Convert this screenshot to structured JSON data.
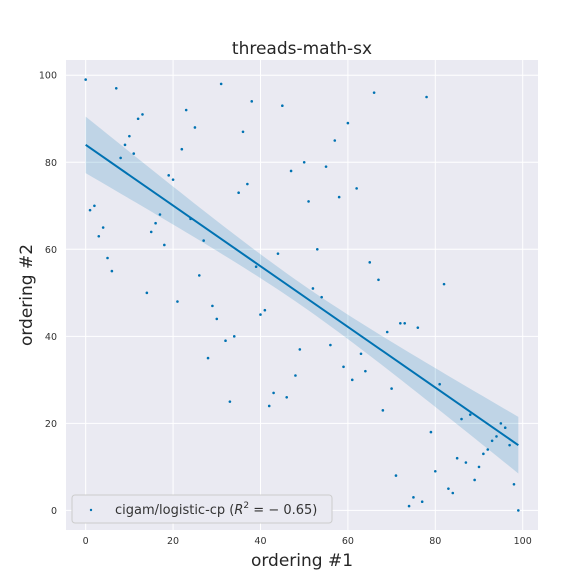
{
  "chart_data": {
    "type": "scatter",
    "title": "threads-math-sx",
    "xlabel": "ordering #1",
    "ylabel": "ordering #2",
    "xlim": [
      -4.5,
      103.5
    ],
    "ylim": [
      -4.5,
      103.5
    ],
    "xticks": [
      0,
      20,
      40,
      60,
      80,
      100
    ],
    "yticks": [
      0,
      20,
      40,
      60,
      80,
      100
    ],
    "grid": true,
    "legend_position": "lower-left",
    "legend": {
      "prefix": "cigam/logistic-cp (",
      "r2_label": "R",
      "r2_exponent": "2",
      "r2_value": " = − 0.65)"
    },
    "series": [
      {
        "name": "cigam/logistic-cp",
        "points": [
          [
            0,
            99
          ],
          [
            1,
            69
          ],
          [
            2,
            70
          ],
          [
            3,
            63
          ],
          [
            4,
            65
          ],
          [
            5,
            58
          ],
          [
            6,
            55
          ],
          [
            7,
            97
          ],
          [
            8,
            81
          ],
          [
            9,
            84
          ],
          [
            10,
            86
          ],
          [
            11,
            82
          ],
          [
            12,
            90
          ],
          [
            13,
            91
          ],
          [
            14,
            50
          ],
          [
            15,
            64
          ],
          [
            16,
            66
          ],
          [
            17,
            68
          ],
          [
            18,
            61
          ],
          [
            19,
            77
          ],
          [
            20,
            76
          ],
          [
            21,
            48
          ],
          [
            22,
            83
          ],
          [
            23,
            92
          ],
          [
            24,
            67
          ],
          [
            25,
            88
          ],
          [
            26,
            54
          ],
          [
            27,
            62
          ],
          [
            28,
            35
          ],
          [
            29,
            47
          ],
          [
            30,
            44
          ],
          [
            31,
            98
          ],
          [
            32,
            39
          ],
          [
            33,
            25
          ],
          [
            34,
            40
          ],
          [
            35,
            73
          ],
          [
            36,
            87
          ],
          [
            37,
            75
          ],
          [
            38,
            94
          ],
          [
            39,
            56
          ],
          [
            40,
            45
          ],
          [
            41,
            46
          ],
          [
            42,
            24
          ],
          [
            43,
            27
          ],
          [
            44,
            59
          ],
          [
            45,
            93
          ],
          [
            46,
            26
          ],
          [
            47,
            78
          ],
          [
            48,
            31
          ],
          [
            49,
            37
          ],
          [
            50,
            80
          ],
          [
            51,
            71
          ],
          [
            52,
            51
          ],
          [
            53,
            60
          ],
          [
            54,
            49
          ],
          [
            55,
            79
          ],
          [
            56,
            38
          ],
          [
            57,
            85
          ],
          [
            58,
            72
          ],
          [
            59,
            33
          ],
          [
            60,
            89
          ],
          [
            61,
            30
          ],
          [
            62,
            74
          ],
          [
            63,
            36
          ],
          [
            64,
            32
          ],
          [
            65,
            57
          ],
          [
            66,
            96
          ],
          [
            67,
            53
          ],
          [
            68,
            23
          ],
          [
            69,
            41
          ],
          [
            70,
            28
          ],
          [
            71,
            8
          ],
          [
            72,
            43
          ],
          [
            73,
            43
          ],
          [
            74,
            1
          ],
          [
            75,
            3
          ],
          [
            76,
            42
          ],
          [
            77,
            2
          ],
          [
            78,
            95
          ],
          [
            79,
            18
          ],
          [
            80,
            9
          ],
          [
            81,
            29
          ],
          [
            82,
            52
          ],
          [
            83,
            5
          ],
          [
            84,
            4
          ],
          [
            85,
            12
          ],
          [
            86,
            21
          ],
          [
            87,
            11
          ],
          [
            88,
            22
          ],
          [
            89,
            7
          ],
          [
            90,
            10
          ],
          [
            91,
            13
          ],
          [
            92,
            14
          ],
          [
            93,
            16
          ],
          [
            94,
            17
          ],
          [
            95,
            20
          ],
          [
            96,
            19
          ],
          [
            97,
            15
          ],
          [
            98,
            6
          ],
          [
            99,
            0
          ]
        ]
      }
    ],
    "regression": {
      "x_range": [
        0,
        99
      ],
      "intercept": 84,
      "slope": -0.697,
      "ci_halfwidth_ends": 6.5,
      "ci_halfwidth_mid": 2.5
    },
    "colors": {
      "background": "#eaeaf2",
      "grid": "#ffffff",
      "points": "#0072b2",
      "line": "#0072b2",
      "band": "#0072b2"
    }
  }
}
